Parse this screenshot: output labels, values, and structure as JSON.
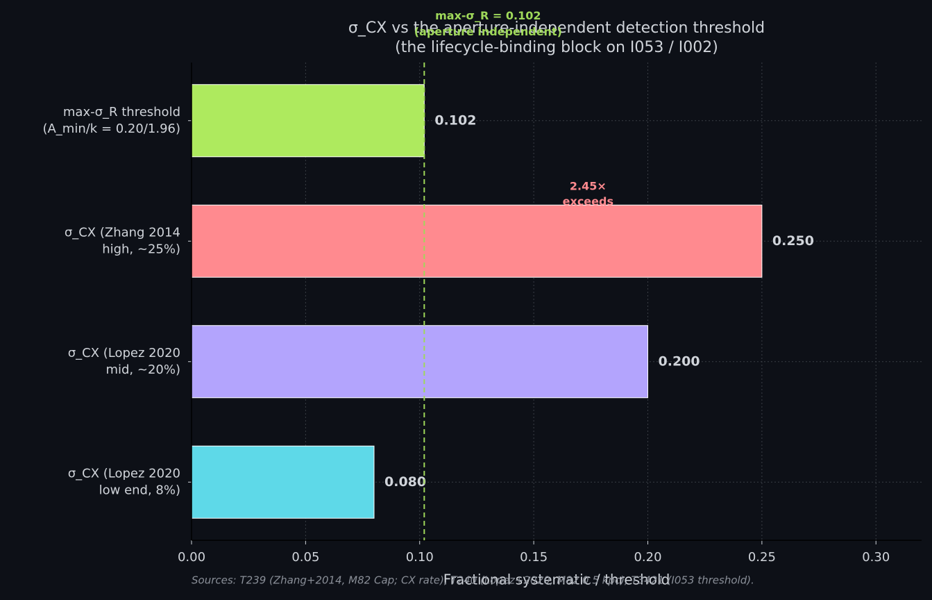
{
  "chart_data": {
    "type": "barh",
    "title": "σ_CX vs the aperture-independent detection threshold\n(the lifecycle-binding block on I053 / I002)",
    "categories": [
      "max-σ_R threshold\n(A_min/k = 0.20/1.96)",
      "σ_CX (Zhang 2014\nhigh, ~25%)",
      "σ_CX (Lopez 2020\nmid, ~20%)",
      "σ_CX (Lopez 2020\nlow end, 8%)"
    ],
    "values": [
      0.102,
      0.25,
      0.2,
      0.08
    ],
    "value_labels": [
      "0.102",
      "0.250",
      "0.200",
      "0.080"
    ],
    "colors": [
      "#aeea5e",
      "#ff8a8f",
      "#b3a4fd",
      "#5ed9e8"
    ],
    "xlim": [
      0,
      0.32
    ],
    "xticks": [
      {
        "value": 0,
        "label": "0.00"
      },
      {
        "value": 0.05,
        "label": "0.05"
      },
      {
        "value": 0.1,
        "label": "0.10"
      },
      {
        "value": 0.15,
        "label": "0.15"
      },
      {
        "value": 0.2,
        "label": "0.20"
      },
      {
        "value": 0.25,
        "label": "0.25"
      },
      {
        "value": 0.3,
        "label": "0.30"
      }
    ],
    "xlabel": "Fractional systematic / threshold",
    "grid": true,
    "threshold": {
      "value": 0.102,
      "label": "max-σ_R = 0.102\n(aperture independent)",
      "color": "#9fd85a"
    },
    "ratio_annotation": {
      "text": "2.45×\nexceeds",
      "x": 0.175,
      "category": 1,
      "color": "#ff8a8f"
    },
    "footer": "Sources: T239 (Zhang+2014, M82 Cap; CX rate), T240 (Lopez+2020, M82 0.5 kpc), T3421 (I053 threshold)."
  }
}
